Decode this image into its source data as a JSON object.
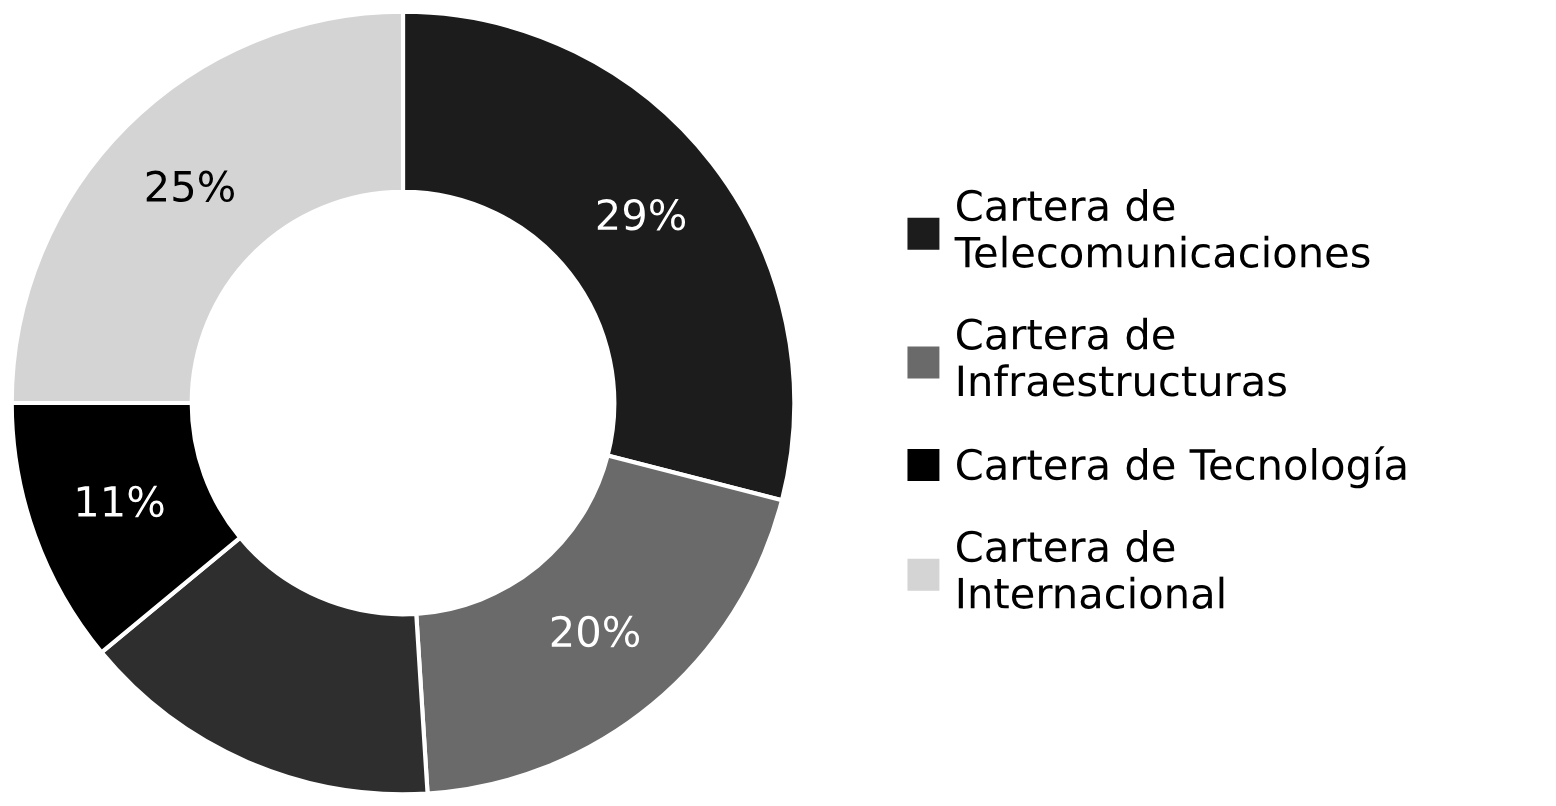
{
  "chart_data": {
    "type": "donut",
    "categories": [
      "Cartera de Telecomunicaciones",
      "Cartera de Infraestructuras",
      null,
      "Cartera de Tecnología",
      "Cartera de Internacional"
    ],
    "values": [
      29,
      20,
      15,
      11,
      25
    ],
    "value_labels": [
      "29%",
      "20%",
      null,
      "11%",
      "25%"
    ],
    "colors": [
      "#1c1c1c",
      "#6a6a6a",
      "#2e2e2e",
      "#000000",
      "#d4d4d4"
    ],
    "legend": "right"
  }
}
